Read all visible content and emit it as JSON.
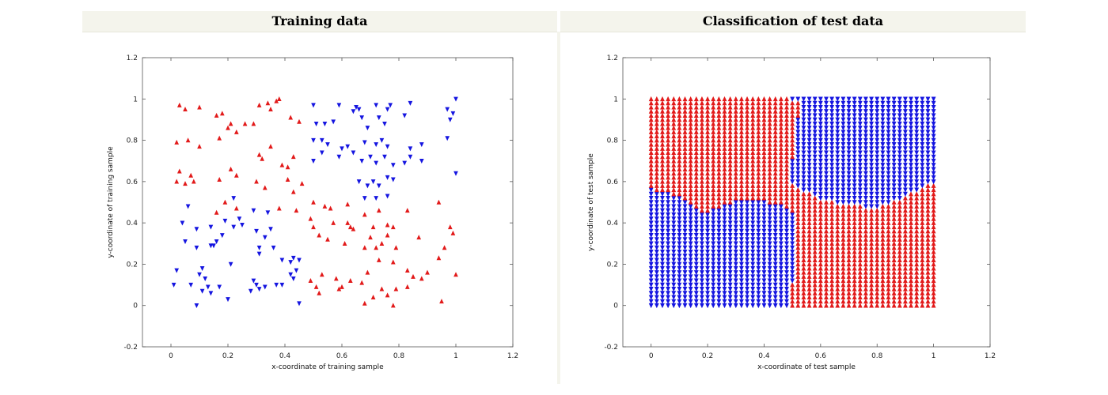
{
  "panels": {
    "left_title": "Training data",
    "right_title": "Classification of test data"
  },
  "colors": {
    "class_a": "#e21a1a",
    "class_b": "#1515e0"
  },
  "chart_data": [
    {
      "type": "scatter",
      "title": "Training data",
      "xlabel": "x-coordinate of training sample",
      "ylabel": "y-coordinate of training sample",
      "xlim": [
        -0.1,
        1.2
      ],
      "ylim": [
        -0.2,
        1.2
      ],
      "xticks": [
        "0",
        "0.2",
        "0.4",
        "0.6",
        "0.8",
        "1",
        "1.2"
      ],
      "yticks": [
        "-0.2",
        "0",
        "0.2",
        "0.4",
        "0.6",
        "0.8",
        "1",
        "1.2"
      ],
      "grid": false,
      "series": [
        {
          "marker": "triangle-up",
          "color": "#e21a1a",
          "points": [
            [
              0.03,
              0.97
            ],
            [
              0.05,
              0.95
            ],
            [
              0.1,
              0.96
            ],
            [
              0.16,
              0.92
            ],
            [
              0.18,
              0.93
            ],
            [
              0.21,
              0.88
            ],
            [
              0.26,
              0.88
            ],
            [
              0.29,
              0.88
            ],
            [
              0.31,
              0.97
            ],
            [
              0.34,
              0.98
            ],
            [
              0.37,
              0.99
            ],
            [
              0.38,
              1.0
            ],
            [
              0.35,
              0.95
            ],
            [
              0.42,
              0.91
            ],
            [
              0.45,
              0.89
            ],
            [
              0.02,
              0.79
            ],
            [
              0.06,
              0.8
            ],
            [
              0.1,
              0.77
            ],
            [
              0.17,
              0.81
            ],
            [
              0.2,
              0.86
            ],
            [
              0.23,
              0.84
            ],
            [
              0.31,
              0.73
            ],
            [
              0.32,
              0.71
            ],
            [
              0.35,
              0.77
            ],
            [
              0.39,
              0.68
            ],
            [
              0.41,
              0.67
            ],
            [
              0.43,
              0.72
            ],
            [
              0.03,
              0.65
            ],
            [
              0.05,
              0.59
            ],
            [
              0.02,
              0.6
            ],
            [
              0.07,
              0.63
            ],
            [
              0.08,
              0.6
            ],
            [
              0.17,
              0.61
            ],
            [
              0.21,
              0.66
            ],
            [
              0.23,
              0.63
            ],
            [
              0.3,
              0.6
            ],
            [
              0.33,
              0.57
            ],
            [
              0.41,
              0.61
            ],
            [
              0.43,
              0.55
            ],
            [
              0.46,
              0.59
            ],
            [
              0.19,
              0.5
            ],
            [
              0.16,
              0.45
            ],
            [
              0.23,
              0.47
            ],
            [
              0.38,
              0.47
            ],
            [
              0.44,
              0.46
            ],
            [
              0.49,
              0.42
            ],
            [
              0.5,
              0.5
            ],
            [
              0.54,
              0.48
            ],
            [
              0.56,
              0.47
            ],
            [
              0.62,
              0.49
            ],
            [
              0.68,
              0.44
            ],
            [
              0.71,
              0.38
            ],
            [
              0.73,
              0.46
            ],
            [
              0.76,
              0.39
            ],
            [
              0.78,
              0.38
            ],
            [
              0.83,
              0.46
            ],
            [
              0.94,
              0.5
            ],
            [
              0.5,
              0.38
            ],
            [
              0.52,
              0.34
            ],
            [
              0.57,
              0.4
            ],
            [
              0.62,
              0.4
            ],
            [
              0.63,
              0.38
            ],
            [
              0.64,
              0.37
            ],
            [
              0.7,
              0.33
            ],
            [
              0.72,
              0.28
            ],
            [
              0.74,
              0.3
            ],
            [
              0.76,
              0.34
            ],
            [
              0.79,
              0.28
            ],
            [
              0.87,
              0.33
            ],
            [
              0.98,
              0.38
            ],
            [
              0.99,
              0.35
            ],
            [
              0.55,
              0.32
            ],
            [
              0.61,
              0.3
            ],
            [
              0.68,
              0.28
            ],
            [
              0.73,
              0.22
            ],
            [
              0.78,
              0.21
            ],
            [
              0.83,
              0.17
            ],
            [
              0.88,
              0.13
            ],
            [
              0.9,
              0.16
            ],
            [
              0.94,
              0.23
            ],
            [
              0.96,
              0.28
            ],
            [
              1.0,
              0.15
            ],
            [
              0.49,
              0.12
            ],
            [
              0.51,
              0.09
            ],
            [
              0.53,
              0.15
            ],
            [
              0.58,
              0.13
            ],
            [
              0.59,
              0.08
            ],
            [
              0.6,
              0.09
            ],
            [
              0.63,
              0.12
            ],
            [
              0.69,
              0.16
            ],
            [
              0.67,
              0.11
            ],
            [
              0.71,
              0.04
            ],
            [
              0.74,
              0.08
            ],
            [
              0.76,
              0.05
            ],
            [
              0.79,
              0.08
            ],
            [
              0.83,
              0.09
            ],
            [
              0.85,
              0.14
            ],
            [
              0.68,
              0.01
            ],
            [
              0.78,
              0.0
            ],
            [
              0.95,
              0.02
            ],
            [
              0.52,
              0.06
            ]
          ]
        },
        {
          "marker": "triangle-down",
          "color": "#1515e0",
          "points": [
            [
              0.5,
              0.97
            ],
            [
              0.59,
              0.97
            ],
            [
              0.65,
              0.96
            ],
            [
              0.66,
              0.95
            ],
            [
              0.72,
              0.97
            ],
            [
              0.77,
              0.97
            ],
            [
              0.64,
              0.94
            ],
            [
              0.67,
              0.91
            ],
            [
              0.73,
              0.91
            ],
            [
              0.76,
              0.95
            ],
            [
              0.84,
              0.98
            ],
            [
              0.97,
              0.95
            ],
            [
              0.99,
              0.93
            ],
            [
              0.98,
              0.9
            ],
            [
              1.0,
              1.0
            ],
            [
              0.51,
              0.88
            ],
            [
              0.54,
              0.88
            ],
            [
              0.57,
              0.89
            ],
            [
              0.69,
              0.86
            ],
            [
              0.75,
              0.88
            ],
            [
              0.82,
              0.92
            ],
            [
              0.5,
              0.8
            ],
            [
              0.53,
              0.8
            ],
            [
              0.55,
              0.78
            ],
            [
              0.6,
              0.76
            ],
            [
              0.62,
              0.77
            ],
            [
              0.68,
              0.79
            ],
            [
              0.72,
              0.78
            ],
            [
              0.74,
              0.8
            ],
            [
              0.76,
              0.77
            ],
            [
              0.84,
              0.76
            ],
            [
              0.88,
              0.78
            ],
            [
              0.97,
              0.81
            ],
            [
              0.5,
              0.7
            ],
            [
              0.53,
              0.74
            ],
            [
              0.59,
              0.72
            ],
            [
              0.64,
              0.74
            ],
            [
              0.67,
              0.7
            ],
            [
              0.7,
              0.72
            ],
            [
              0.72,
              0.69
            ],
            [
              0.75,
              0.72
            ],
            [
              0.78,
              0.68
            ],
            [
              0.82,
              0.69
            ],
            [
              0.84,
              0.72
            ],
            [
              0.88,
              0.7
            ],
            [
              1.0,
              0.64
            ],
            [
              0.66,
              0.6
            ],
            [
              0.69,
              0.58
            ],
            [
              0.71,
              0.6
            ],
            [
              0.73,
              0.58
            ],
            [
              0.76,
              0.62
            ],
            [
              0.78,
              0.61
            ],
            [
              0.68,
              0.52
            ],
            [
              0.72,
              0.52
            ],
            [
              0.76,
              0.53
            ],
            [
              0.22,
              0.52
            ],
            [
              0.19,
              0.41
            ],
            [
              0.24,
              0.42
            ],
            [
              0.06,
              0.48
            ],
            [
              0.04,
              0.4
            ],
            [
              0.09,
              0.37
            ],
            [
              0.14,
              0.38
            ],
            [
              0.18,
              0.34
            ],
            [
              0.22,
              0.38
            ],
            [
              0.25,
              0.39
            ],
            [
              0.29,
              0.46
            ],
            [
              0.34,
              0.45
            ],
            [
              0.35,
              0.37
            ],
            [
              0.3,
              0.36
            ],
            [
              0.33,
              0.33
            ],
            [
              0.36,
              0.28
            ],
            [
              0.05,
              0.31
            ],
            [
              0.09,
              0.28
            ],
            [
              0.14,
              0.29
            ],
            [
              0.15,
              0.29
            ],
            [
              0.16,
              0.31
            ],
            [
              0.21,
              0.2
            ],
            [
              0.31,
              0.28
            ],
            [
              0.31,
              0.25
            ],
            [
              0.39,
              0.22
            ],
            [
              0.43,
              0.23
            ],
            [
              0.45,
              0.22
            ],
            [
              0.42,
              0.21
            ],
            [
              0.44,
              0.17
            ],
            [
              0.02,
              0.17
            ],
            [
              0.1,
              0.15
            ],
            [
              0.11,
              0.18
            ],
            [
              0.12,
              0.13
            ],
            [
              0.07,
              0.1
            ],
            [
              0.11,
              0.07
            ],
            [
              0.13,
              0.09
            ],
            [
              0.14,
              0.06
            ],
            [
              0.01,
              0.1
            ],
            [
              0.09,
              0.0
            ],
            [
              0.17,
              0.09
            ],
            [
              0.2,
              0.03
            ],
            [
              0.29,
              0.12
            ],
            [
              0.3,
              0.1
            ],
            [
              0.31,
              0.08
            ],
            [
              0.28,
              0.07
            ],
            [
              0.33,
              0.09
            ],
            [
              0.37,
              0.1
            ],
            [
              0.39,
              0.1
            ],
            [
              0.43,
              0.13
            ],
            [
              0.42,
              0.15
            ],
            [
              0.45,
              0.01
            ]
          ]
        }
      ]
    },
    {
      "type": "scatter",
      "title": "Classification of test data",
      "xlabel": "x-coordinate of test sample",
      "ylabel": "y-coordinate of test sample",
      "xlim": [
        -0.1,
        1.2
      ],
      "ylim": [
        -0.2,
        1.2
      ],
      "xticks": [
        "0",
        "0.2",
        "0.4",
        "0.6",
        "0.8",
        "1",
        "1.2"
      ],
      "yticks": [
        "-0.2",
        "0",
        "0.2",
        "0.4",
        "0.6",
        "0.8",
        "1",
        "1.2"
      ],
      "grid": false,
      "grid_step": 0.02,
      "grid_range": [
        0,
        1
      ],
      "decision_regions": {
        "lower_left_blue_top": [
          [
            0.0,
            0.56
          ],
          [
            0.05,
            0.55
          ],
          [
            0.1,
            0.52
          ],
          [
            0.15,
            0.47
          ],
          [
            0.2,
            0.45
          ],
          [
            0.25,
            0.48
          ],
          [
            0.3,
            0.51
          ],
          [
            0.35,
            0.51
          ],
          [
            0.4,
            0.5
          ],
          [
            0.45,
            0.49
          ],
          [
            0.49,
            0.47
          ],
          [
            0.5,
            0.46
          ]
        ],
        "lower_left_blue_right_x": 0.5,
        "lower_left_blue_notch": [
          [
            0.0,
            0.48
          ],
          [
            0.04,
            0.49
          ],
          [
            0.08,
            0.49
          ]
        ],
        "upper_right_blue_bottom": [
          [
            0.5,
            0.6
          ],
          [
            0.55,
            0.55
          ],
          [
            0.6,
            0.52
          ],
          [
            0.65,
            0.5
          ],
          [
            0.7,
            0.49
          ],
          [
            0.75,
            0.48
          ],
          [
            0.8,
            0.48
          ],
          [
            0.85,
            0.5
          ],
          [
            0.9,
            0.53
          ],
          [
            0.95,
            0.56
          ],
          [
            1.0,
            0.6
          ]
        ],
        "upper_right_blue_left": [
          [
            0.5,
            1.0
          ],
          [
            0.54,
            1.0
          ],
          [
            0.52,
            0.9
          ],
          [
            0.51,
            0.8
          ],
          [
            0.5,
            0.7
          ],
          [
            0.5,
            0.6
          ]
        ]
      }
    }
  ]
}
